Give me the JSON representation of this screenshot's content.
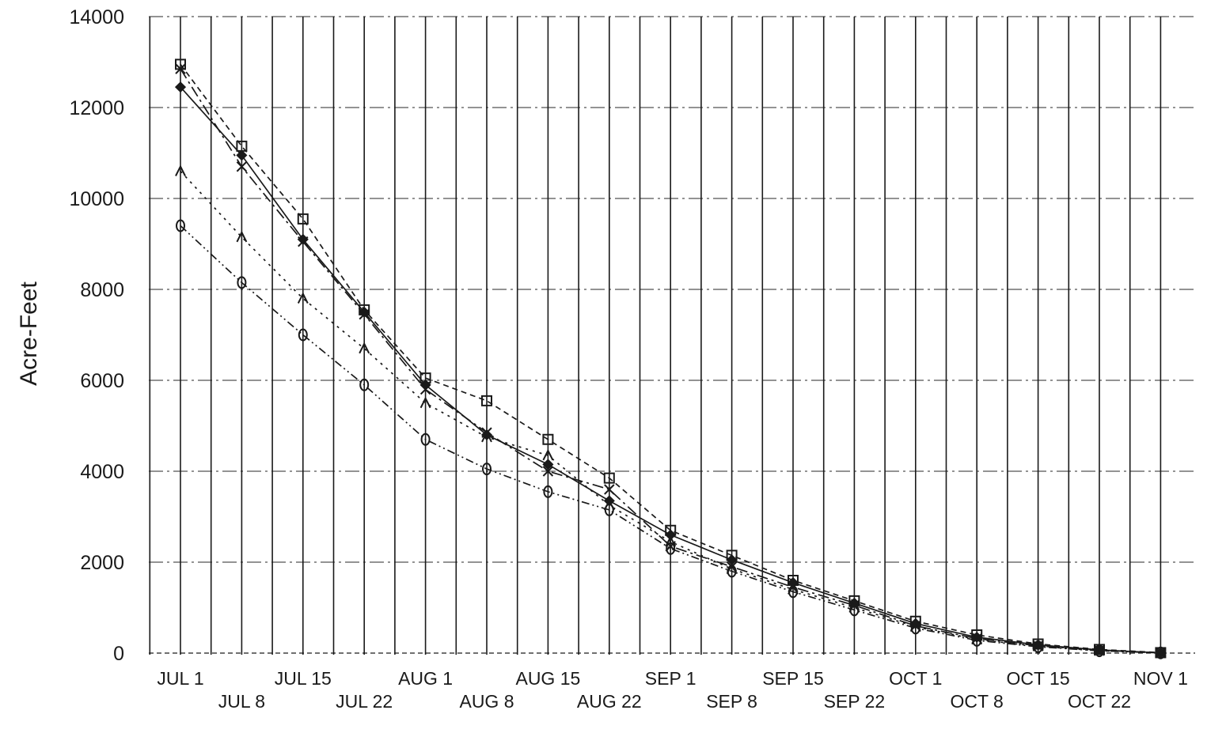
{
  "chart_data": {
    "type": "line",
    "title": "",
    "xlabel": "",
    "ylabel": "Acre-Feet",
    "ylim": [
      0,
      14000
    ],
    "yticks": [
      0,
      2000,
      4000,
      6000,
      8000,
      10000,
      12000,
      14000
    ],
    "ytick_labels": [
      "0",
      "2000",
      "4000",
      "6000",
      "8000",
      "10000",
      "12000",
      "14000"
    ],
    "categories": [
      "JUL 1",
      "JUL 8",
      "JUL 15",
      "JUL 22",
      "AUG 1",
      "AUG 8",
      "AUG 15",
      "AUG 22",
      "SEP 1",
      "SEP 8",
      "SEP 15",
      "SEP 22",
      "OCT 1",
      "OCT 8",
      "OCT 15",
      "OCT 22",
      "NOV 1"
    ],
    "grid": true,
    "colors": {
      "line": "#1a1a1a",
      "background": "#ffffff"
    },
    "series": [
      {
        "marker": "square",
        "values": [
          12950,
          11150,
          9550,
          7550,
          6050,
          5550,
          4700,
          3850,
          2700,
          2150,
          1600,
          1150,
          700,
          400,
          200,
          80,
          10
        ]
      },
      {
        "marker": "diamond",
        "values": [
          12450,
          10950,
          9100,
          7500,
          5900,
          4800,
          4150,
          3350,
          2600,
          2050,
          1550,
          1100,
          650,
          350,
          180,
          70,
          5
        ]
      },
      {
        "marker": "x",
        "values": [
          12850,
          10700,
          9050,
          7450,
          5800,
          4850,
          4000,
          3600,
          2350,
          1900,
          1450,
          1050,
          600,
          320,
          160,
          60,
          5
        ]
      },
      {
        "marker": "triangle",
        "values": [
          10600,
          9150,
          7800,
          6700,
          5500,
          4750,
          4350,
          3250,
          2450,
          1850,
          1400,
          1000,
          580,
          300,
          150,
          50,
          5
        ]
      },
      {
        "marker": "circle",
        "values": [
          9400,
          8150,
          7000,
          5900,
          4700,
          4050,
          3550,
          3150,
          2300,
          1800,
          1350,
          950,
          550,
          280,
          140,
          50,
          5
        ]
      }
    ]
  }
}
